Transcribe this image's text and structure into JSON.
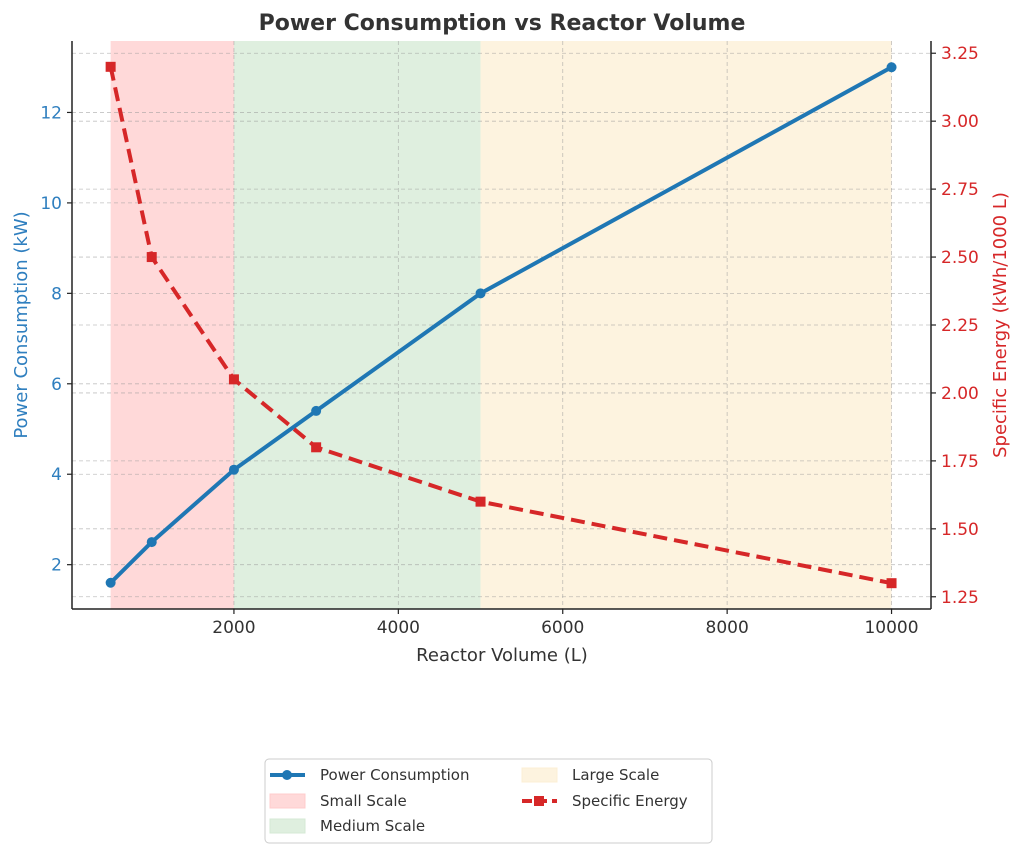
{
  "chart_data": {
    "type": "line",
    "title": "Power Consumption vs Reactor Volume",
    "xlabel": "Reactor Volume (L)",
    "ylabel_left": "Power Consumption (kW)",
    "ylabel_right": "Specific Energy (kWh/1000 L)",
    "x": [
      500,
      1000,
      2000,
      3000,
      5000,
      10000
    ],
    "xlim": [
      30,
      10480
    ],
    "xticks": [
      2000,
      4000,
      6000,
      8000,
      10000
    ],
    "xtick_labels": [
      "2000",
      "4000",
      "6000",
      "8000",
      "10000"
    ],
    "ylim_left": [
      1.02,
      13.58
    ],
    "yticks_left": [
      2,
      4,
      6,
      8,
      10,
      12
    ],
    "ytick_labels_left": [
      "2",
      "4",
      "6",
      "8",
      "10",
      "12"
    ],
    "ylim_right": [
      1.205,
      3.295
    ],
    "yticks_right": [
      1.25,
      1.5,
      1.75,
      2.0,
      2.25,
      2.5,
      2.75,
      3.0,
      3.25
    ],
    "ytick_labels_right": [
      "1.25",
      "1.50",
      "1.75",
      "2.00",
      "2.25",
      "2.50",
      "2.75",
      "3.00",
      "3.25"
    ],
    "grid": true,
    "series": [
      {
        "name": "Power Consumption",
        "axis": "left",
        "values": [
          1.6,
          2.5,
          4.1,
          5.4,
          8.0,
          13.0
        ],
        "color": "#1f77b4",
        "style": "solid",
        "marker": "circle"
      },
      {
        "name": "Specific Energy",
        "axis": "right",
        "values": [
          3.2,
          2.5,
          2.05,
          1.8,
          1.6,
          1.3
        ],
        "color": "#d62728",
        "style": "dashed",
        "marker": "square"
      }
    ],
    "regions": [
      {
        "name": "Small Scale",
        "x_start": 500,
        "x_end": 2000,
        "color": "#ffcccc"
      },
      {
        "name": "Medium Scale",
        "x_start": 2000,
        "x_end": 5000,
        "color": "#d4ead4"
      },
      {
        "name": "Large Scale",
        "x_start": 5000,
        "x_end": 10000,
        "color": "#fcefd4"
      }
    ],
    "legend": {
      "placement": "below",
      "entries": [
        "Power Consumption",
        "Small Scale",
        "Medium Scale",
        "Large Scale",
        "Specific Energy"
      ]
    }
  }
}
